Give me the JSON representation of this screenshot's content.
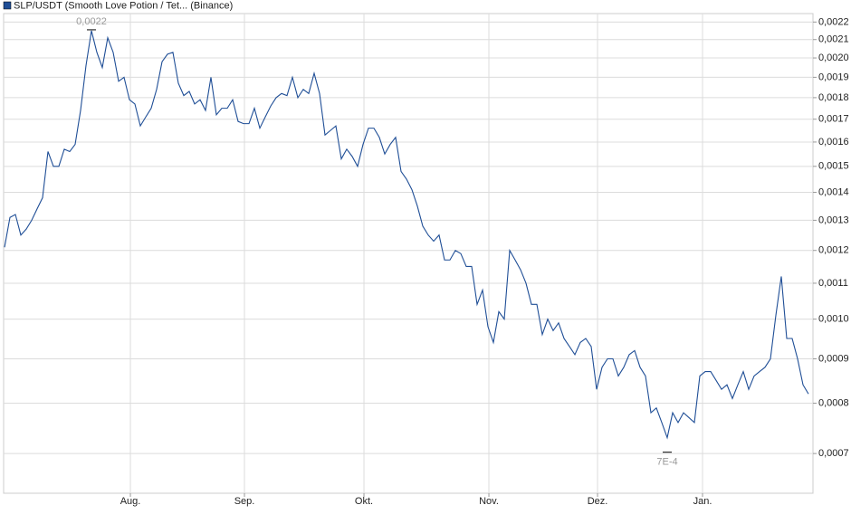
{
  "chart_data": {
    "type": "line",
    "series": [
      {
        "name": "SLP/USDT (Smooth Love Potion / Tet... (Binance)",
        "color": "#1f4e96",
        "values": [
          0.00121,
          0.00131,
          0.00132,
          0.00125,
          0.00127,
          0.0013,
          0.00134,
          0.00138,
          0.00156,
          0.0015,
          0.0015,
          0.00157,
          0.00156,
          0.00159,
          0.00174,
          0.00196,
          0.00215,
          0.00203,
          0.00195,
          0.00211,
          0.00203,
          0.00188,
          0.0019,
          0.00179,
          0.00177,
          0.00167,
          0.00171,
          0.00175,
          0.00184,
          0.00198,
          0.00202,
          0.00203,
          0.00187,
          0.00181,
          0.00183,
          0.00177,
          0.00179,
          0.00174,
          0.0019,
          0.00172,
          0.00175,
          0.00175,
          0.00179,
          0.00169,
          0.00168,
          0.00168,
          0.00175,
          0.00166,
          0.00171,
          0.00176,
          0.0018,
          0.00182,
          0.00181,
          0.0019,
          0.0018,
          0.00184,
          0.00182,
          0.00192,
          0.00182,
          0.00163,
          0.00165,
          0.00167,
          0.00153,
          0.00157,
          0.00154,
          0.0015,
          0.00159,
          0.00166,
          0.00166,
          0.00162,
          0.00155,
          0.00159,
          0.00162,
          0.00148,
          0.00145,
          0.00141,
          0.00135,
          0.00128,
          0.00125,
          0.00123,
          0.00125,
          0.00117,
          0.00117,
          0.0012,
          0.00119,
          0.00115,
          0.00115,
          0.00104,
          0.00108,
          0.00098,
          0.00094,
          0.00102,
          0.001,
          0.0012,
          0.00117,
          0.00114,
          0.0011,
          0.00104,
          0.00104,
          0.00096,
          0.001,
          0.00097,
          0.00099,
          0.00095,
          0.00093,
          0.00091,
          0.00094,
          0.00095,
          0.00093,
          0.00083,
          0.00088,
          0.0009,
          0.0009,
          0.00086,
          0.00088,
          0.00091,
          0.00092,
          0.00088,
          0.00086,
          0.00078,
          0.00079,
          0.00076,
          0.00073,
          0.00078,
          0.00076,
          0.00078,
          0.00077,
          0.00076,
          0.00086,
          0.00087,
          0.00087,
          0.00085,
          0.00083,
          0.00084,
          0.00081,
          0.00084,
          0.00087,
          0.00083,
          0.00086,
          0.00087,
          0.00088,
          0.0009,
          0.00101,
          0.00112,
          0.00095,
          0.00095,
          0.0009,
          0.00084,
          0.00082
        ]
      }
    ],
    "xlim": [
      0,
      148
    ],
    "xticks": [
      {
        "value": 23.17,
        "label": "Aug."
      },
      {
        "value": 44.17,
        "label": "Sep."
      },
      {
        "value": 66.17,
        "label": "Okt."
      },
      {
        "value": 89.17,
        "label": "Nov."
      },
      {
        "value": 109.17,
        "label": "Dez."
      },
      {
        "value": 128.5,
        "label": "Jan."
      }
    ],
    "ylim": [
      0.00063,
      0.00225
    ],
    "log_y": true,
    "grid": true,
    "yticks": [
      {
        "value": 0.0007,
        "label": "0,0007"
      },
      {
        "value": 0.0008,
        "label": "0,0008"
      },
      {
        "value": 0.0009,
        "label": "0,0009"
      },
      {
        "value": 0.001,
        "label": "0,0010"
      },
      {
        "value": 0.0011,
        "label": "0,0011"
      },
      {
        "value": 0.0012,
        "label": "0,0012"
      },
      {
        "value": 0.0013,
        "label": "0,0013"
      },
      {
        "value": 0.0014,
        "label": "0,0014"
      },
      {
        "value": 0.0015,
        "label": "0,0015"
      },
      {
        "value": 0.0016,
        "label": "0,0016"
      },
      {
        "value": 0.0017,
        "label": "0,0017"
      },
      {
        "value": 0.0018,
        "label": "0,0018"
      },
      {
        "value": 0.0019,
        "label": "0,0019"
      },
      {
        "value": 0.002,
        "label": "0,0020"
      },
      {
        "value": 0.0021,
        "label": "0,0021"
      },
      {
        "value": 0.0022,
        "label": "0,0022"
      }
    ],
    "annotations": [
      "0,0022",
      "7E-4"
    ]
  }
}
